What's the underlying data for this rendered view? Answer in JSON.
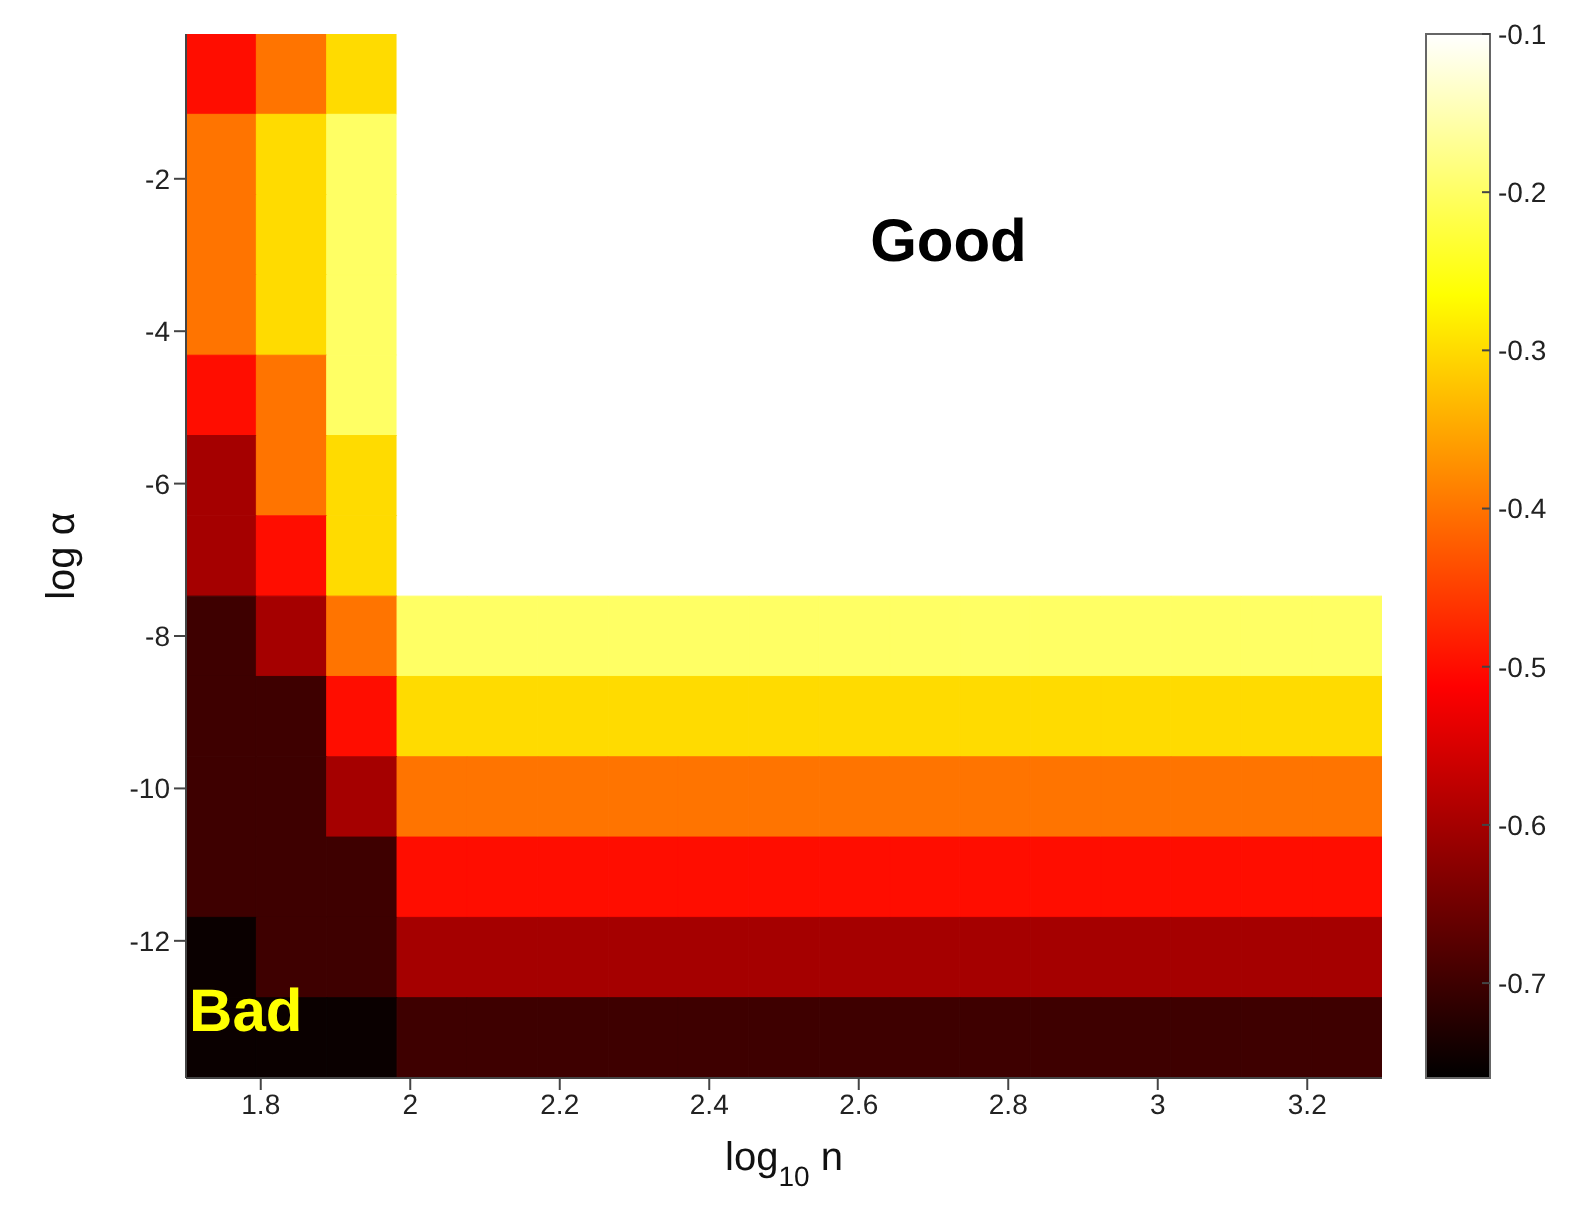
{
  "chart_data": {
    "type": "heatmap",
    "xlabel": "log$_{10}$ n",
    "ylabel": "log α",
    "cells": [
      [
        -0.5,
        -0.4,
        -0.3,
        -0.1,
        -0.1,
        -0.1,
        -0.1,
        -0.1,
        -0.1,
        -0.1,
        -0.1,
        -0.1,
        -0.1,
        -0.1,
        -0.1,
        -0.1,
        -0.1
      ],
      [
        -0.4,
        -0.3,
        -0.2,
        -0.1,
        -0.1,
        -0.1,
        -0.1,
        -0.1,
        -0.1,
        -0.1,
        -0.1,
        -0.1,
        -0.1,
        -0.1,
        -0.1,
        -0.1,
        -0.1
      ],
      [
        -0.4,
        -0.3,
        -0.2,
        -0.1,
        -0.1,
        -0.1,
        -0.1,
        -0.1,
        -0.1,
        -0.1,
        -0.1,
        -0.1,
        -0.1,
        -0.1,
        -0.1,
        -0.1,
        -0.1
      ],
      [
        -0.4,
        -0.3,
        -0.2,
        -0.1,
        -0.1,
        -0.1,
        -0.1,
        -0.1,
        -0.1,
        -0.1,
        -0.1,
        -0.1,
        -0.1,
        -0.1,
        -0.1,
        -0.1,
        -0.1
      ],
      [
        -0.5,
        -0.4,
        -0.2,
        -0.1,
        -0.1,
        -0.1,
        -0.1,
        -0.1,
        -0.1,
        -0.1,
        -0.1,
        -0.1,
        -0.1,
        -0.1,
        -0.1,
        -0.1,
        -0.1
      ],
      [
        -0.6,
        -0.4,
        -0.3,
        -0.1,
        -0.1,
        -0.1,
        -0.1,
        -0.1,
        -0.1,
        -0.1,
        -0.1,
        -0.1,
        -0.1,
        -0.1,
        -0.1,
        -0.1,
        -0.1
      ],
      [
        -0.6,
        -0.5,
        -0.3,
        -0.1,
        -0.1,
        -0.1,
        -0.1,
        -0.1,
        -0.1,
        -0.1,
        -0.1,
        -0.1,
        -0.1,
        -0.1,
        -0.1,
        -0.1,
        -0.1
      ],
      [
        -0.7,
        -0.6,
        -0.4,
        -0.2,
        -0.2,
        -0.2,
        -0.2,
        -0.2,
        -0.2,
        -0.2,
        -0.2,
        -0.2,
        -0.2,
        -0.2,
        -0.2,
        -0.2,
        -0.2
      ],
      [
        -0.7,
        -0.7,
        -0.5,
        -0.3,
        -0.3,
        -0.3,
        -0.3,
        -0.3,
        -0.3,
        -0.3,
        -0.3,
        -0.3,
        -0.3,
        -0.3,
        -0.3,
        -0.3,
        -0.3
      ],
      [
        -0.7,
        -0.7,
        -0.6,
        -0.4,
        -0.4,
        -0.4,
        -0.4,
        -0.4,
        -0.4,
        -0.4,
        -0.4,
        -0.4,
        -0.4,
        -0.4,
        -0.4,
        -0.4,
        -0.4
      ],
      [
        -0.7,
        -0.7,
        -0.7,
        -0.5,
        -0.5,
        -0.5,
        -0.5,
        -0.5,
        -0.5,
        -0.5,
        -0.5,
        -0.5,
        -0.5,
        -0.5,
        -0.5,
        -0.5,
        -0.5
      ],
      [
        -0.75,
        -0.7,
        -0.7,
        -0.6,
        -0.6,
        -0.6,
        -0.6,
        -0.6,
        -0.6,
        -0.6,
        -0.6,
        -0.6,
        -0.6,
        -0.6,
        -0.6,
        -0.6,
        -0.6
      ],
      [
        -0.75,
        -0.75,
        -0.75,
        -0.7,
        -0.7,
        -0.7,
        -0.7,
        -0.7,
        -0.7,
        -0.7,
        -0.7,
        -0.7,
        -0.7,
        -0.7,
        -0.7,
        -0.7,
        -0.7
      ]
    ],
    "xlim": [
      1.7,
      3.3
    ],
    "xticks": [
      1.8,
      2,
      2.2,
      2.4,
      2.6,
      2.8,
      3,
      3.2
    ],
    "ylim": [
      -13.8,
      -0.1
    ],
    "yticks": [
      -12,
      -10,
      -8,
      -6,
      -4,
      -2
    ],
    "clim": [
      -0.76,
      -0.1
    ],
    "cticks": [
      -0.7,
      -0.6,
      -0.5,
      -0.4,
      -0.3,
      -0.2,
      -0.1
    ],
    "annotations": [
      "Good",
      "Bad"
    ]
  }
}
